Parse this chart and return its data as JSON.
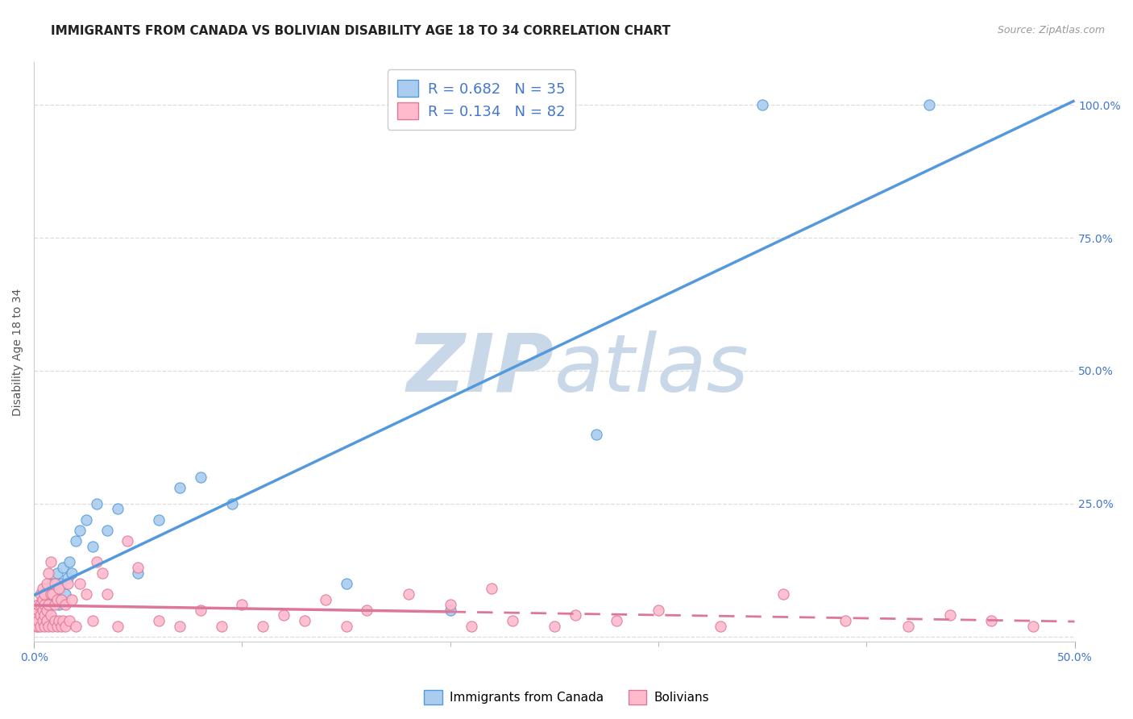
{
  "title": "IMMIGRANTS FROM CANADA VS BOLIVIAN DISABILITY AGE 18 TO 34 CORRELATION CHART",
  "source": "Source: ZipAtlas.com",
  "ylabel": "Disability Age 18 to 34",
  "x_min": 0.0,
  "x_max": 0.5,
  "y_min": -0.01,
  "y_max": 1.08,
  "watermark_zip": "ZIP",
  "watermark_atlas": "atlas",
  "canada_scatter_x": [
    0.001,
    0.002,
    0.003,
    0.004,
    0.005,
    0.006,
    0.007,
    0.008,
    0.009,
    0.01,
    0.011,
    0.012,
    0.013,
    0.014,
    0.015,
    0.016,
    0.017,
    0.018,
    0.02,
    0.022,
    0.025,
    0.028,
    0.03,
    0.035,
    0.04,
    0.05,
    0.06,
    0.07,
    0.08,
    0.095,
    0.15,
    0.2,
    0.27,
    0.35,
    0.43
  ],
  "canada_scatter_y": [
    0.03,
    0.05,
    0.04,
    0.06,
    0.08,
    0.05,
    0.09,
    0.07,
    0.1,
    0.08,
    0.12,
    0.06,
    0.1,
    0.13,
    0.08,
    0.11,
    0.14,
    0.12,
    0.18,
    0.2,
    0.22,
    0.17,
    0.25,
    0.2,
    0.24,
    0.12,
    0.22,
    0.28,
    0.3,
    0.25,
    0.1,
    0.05,
    0.38,
    1.0,
    1.0
  ],
  "bolivia_scatter_x": [
    0.001,
    0.001,
    0.001,
    0.002,
    0.002,
    0.002,
    0.002,
    0.003,
    0.003,
    0.003,
    0.003,
    0.004,
    0.004,
    0.004,
    0.004,
    0.005,
    0.005,
    0.005,
    0.005,
    0.006,
    0.006,
    0.006,
    0.007,
    0.007,
    0.007,
    0.008,
    0.008,
    0.008,
    0.009,
    0.009,
    0.01,
    0.01,
    0.01,
    0.011,
    0.011,
    0.012,
    0.012,
    0.013,
    0.013,
    0.014,
    0.015,
    0.015,
    0.016,
    0.017,
    0.018,
    0.02,
    0.022,
    0.025,
    0.028,
    0.03,
    0.033,
    0.035,
    0.04,
    0.045,
    0.05,
    0.06,
    0.07,
    0.08,
    0.09,
    0.1,
    0.11,
    0.12,
    0.13,
    0.14,
    0.15,
    0.16,
    0.18,
    0.2,
    0.21,
    0.22,
    0.23,
    0.25,
    0.26,
    0.28,
    0.3,
    0.33,
    0.36,
    0.39,
    0.42,
    0.44,
    0.46,
    0.48
  ],
  "bolivia_scatter_y": [
    0.02,
    0.03,
    0.04,
    0.02,
    0.03,
    0.05,
    0.06,
    0.02,
    0.04,
    0.06,
    0.08,
    0.03,
    0.05,
    0.07,
    0.09,
    0.02,
    0.04,
    0.06,
    0.08,
    0.03,
    0.05,
    0.1,
    0.02,
    0.06,
    0.12,
    0.04,
    0.08,
    0.14,
    0.02,
    0.08,
    0.03,
    0.06,
    0.1,
    0.02,
    0.07,
    0.03,
    0.09,
    0.02,
    0.07,
    0.03,
    0.02,
    0.06,
    0.1,
    0.03,
    0.07,
    0.02,
    0.1,
    0.08,
    0.03,
    0.14,
    0.12,
    0.08,
    0.02,
    0.18,
    0.13,
    0.03,
    0.02,
    0.05,
    0.02,
    0.06,
    0.02,
    0.04,
    0.03,
    0.07,
    0.02,
    0.05,
    0.08,
    0.06,
    0.02,
    0.09,
    0.03,
    0.02,
    0.04,
    0.03,
    0.05,
    0.02,
    0.08,
    0.03,
    0.02,
    0.04,
    0.03,
    0.02
  ],
  "canada_line_color": "#5599dd",
  "canada_scatter_color": "#aaccee",
  "canada_scatter_edge": "#5599dd",
  "bolivia_line_color": "#dd7799",
  "bolivia_scatter_color": "#ffbbcc",
  "bolivia_scatter_edge": "#dd7799",
  "grid_color": "#dddddd",
  "background_color": "#ffffff",
  "title_fontsize": 11,
  "axis_label_fontsize": 10,
  "tick_fontsize": 10,
  "watermark_color_zip": "#c8d8e8",
  "watermark_color_atlas": "#c8d8e8",
  "legend_text_color": "#4477cc",
  "legend_N_color": "#3355bb"
}
